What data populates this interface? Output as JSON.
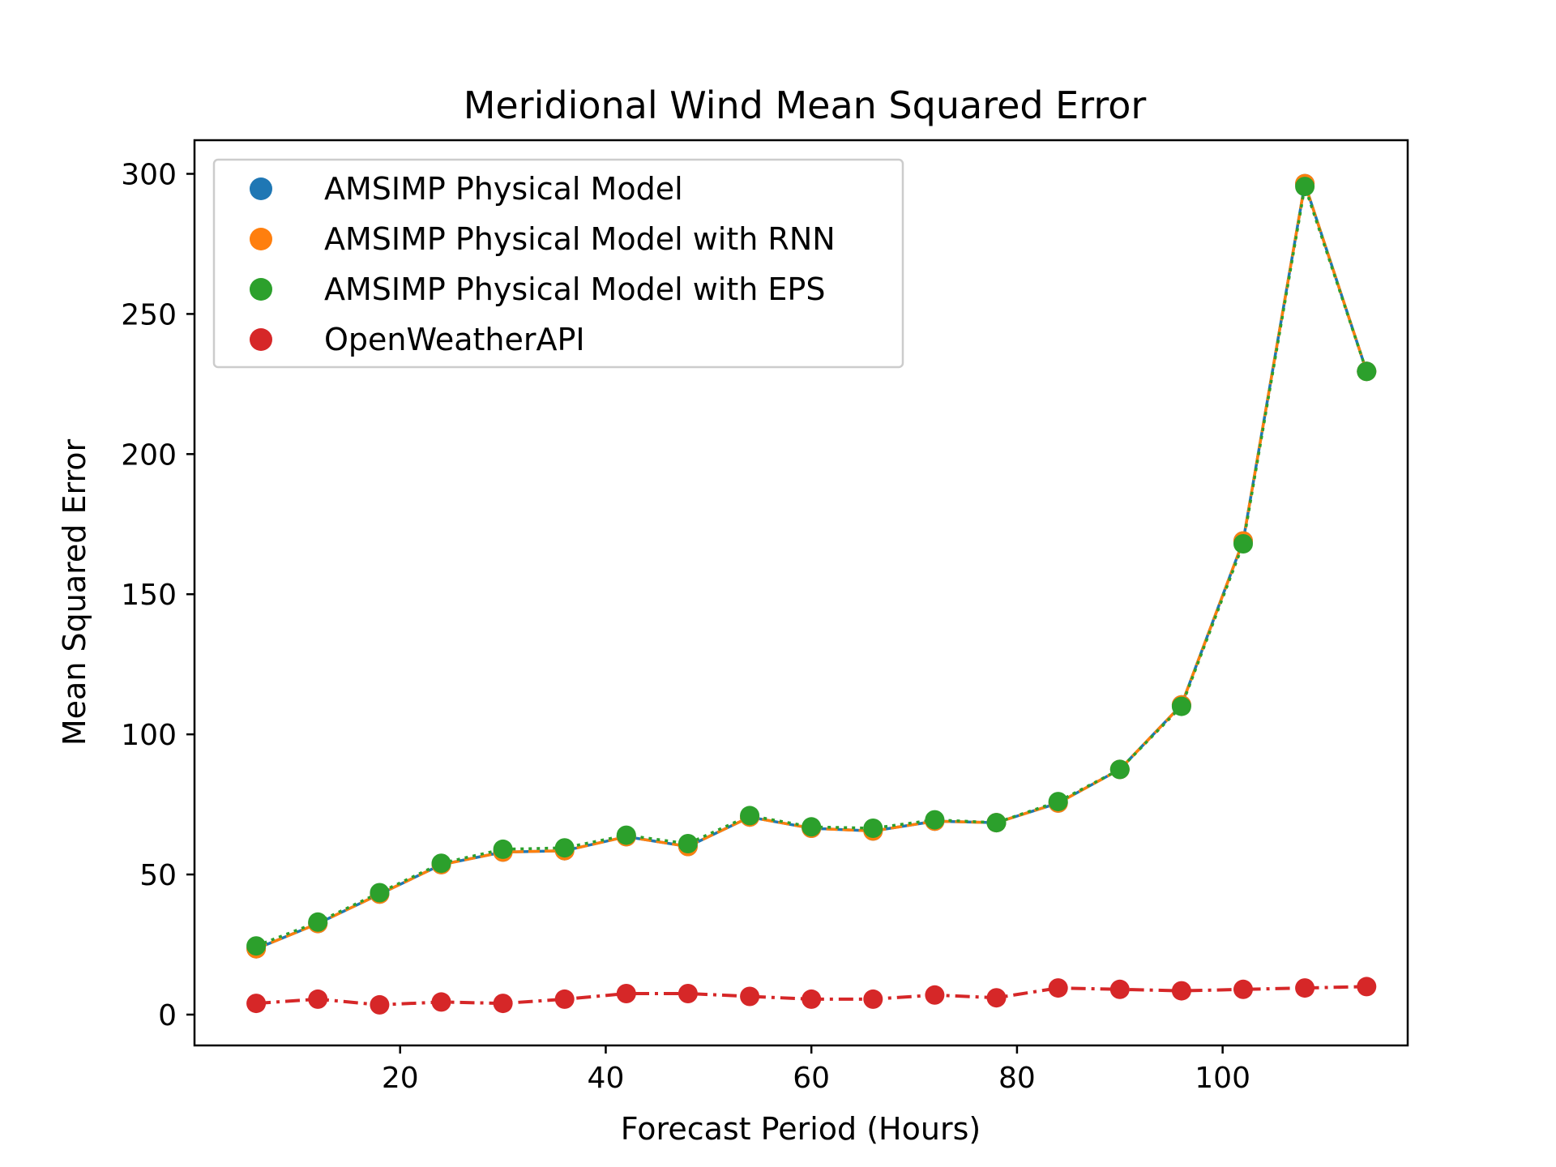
{
  "chart_data": {
    "type": "line",
    "title": "Meridional Wind Mean Squared Error",
    "xlabel": "Forecast Period (Hours)",
    "ylabel": "Mean Squared Error",
    "xlim": [
      0,
      118
    ],
    "ylim": [
      -11,
      312
    ],
    "xticks": [
      20,
      40,
      60,
      80,
      100
    ],
    "yticks": [
      0,
      50,
      100,
      150,
      200,
      250,
      300
    ],
    "grid": false,
    "legend_position": "upper left",
    "x": [
      6,
      12,
      18,
      24,
      30,
      36,
      42,
      48,
      54,
      60,
      66,
      72,
      78,
      84,
      90,
      96,
      102,
      108,
      114
    ],
    "series": [
      {
        "name": "AMSIMP Physical Model",
        "color": "#1f77b4",
        "linestyle": "solid",
        "values": [
          23.5,
          32.5,
          43,
          53.5,
          58,
          58.5,
          63.5,
          60,
          70.5,
          66.5,
          65.5,
          69,
          68.5,
          75.5,
          87.5,
          110.5,
          169,
          296.5,
          229.5
        ]
      },
      {
        "name": "AMSIMP Physical Model with RNN",
        "color": "#ff7f0e",
        "linestyle": "dashed",
        "values": [
          23.5,
          32.5,
          43,
          53.5,
          58,
          58.5,
          63.5,
          60,
          70.5,
          66.5,
          65.5,
          69,
          68.5,
          75.5,
          87.5,
          110.5,
          169,
          296.5,
          229.5
        ]
      },
      {
        "name": "AMSIMP Physical Model with EPS",
        "color": "#2ca02c",
        "linestyle": "dotted",
        "values": [
          24.5,
          33,
          43.5,
          54,
          59,
          59.5,
          64,
          61,
          71,
          67,
          66.5,
          69.5,
          68.5,
          76,
          87.5,
          110,
          168,
          295.5,
          229.5
        ]
      },
      {
        "name": "OpenWeatherAPI",
        "color": "#d62728",
        "linestyle": "dashdot",
        "values": [
          4,
          5.5,
          3.5,
          4.5,
          4,
          5.5,
          7.5,
          7.5,
          6.5,
          5.5,
          5.5,
          7,
          6,
          9.5,
          9,
          8.5,
          9,
          9.5,
          10
        ]
      }
    ]
  }
}
